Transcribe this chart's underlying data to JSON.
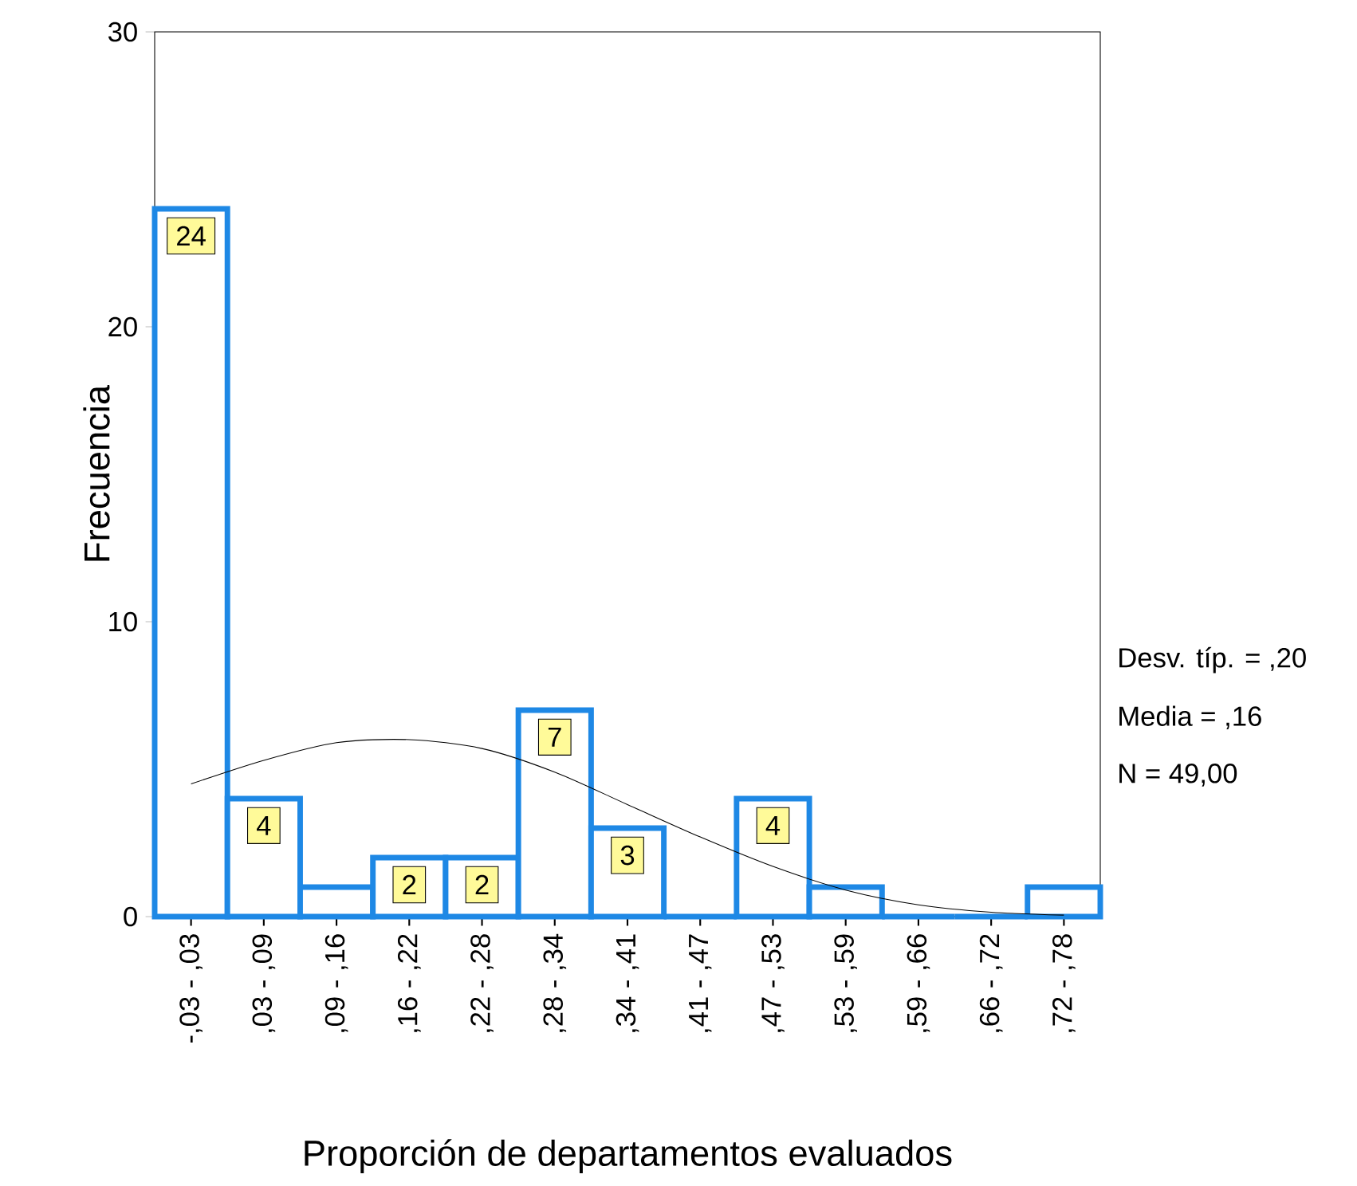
{
  "chart_data": {
    "type": "bar",
    "categories": [
      "-,03 - ,03",
      ",03 - ,09",
      ",09 - ,16",
      ",16 - ,22",
      ",22 - ,28",
      ",28 - ,34",
      ",34 - ,41",
      ",41 - ,47",
      ",47 - ,53",
      ",53 - ,59",
      ",59 - ,66",
      ",66 - ,72",
      ",72 - ,78"
    ],
    "series": [
      {
        "color": "#1e88e5",
        "values": [
          24,
          4,
          1,
          2,
          2,
          7,
          3,
          0,
          4,
          1,
          0,
          0,
          1
        ],
        "value_labels": [
          "24",
          "4",
          null,
          "2",
          "2",
          "7",
          "3",
          null,
          "4",
          null,
          null,
          null,
          null
        ]
      },
      {
        "type": "line",
        "color": "#000000",
        "values": [
          4.5,
          5.3,
          5.9,
          6.0,
          5.7,
          4.9,
          3.8,
          2.7,
          1.7,
          0.9,
          0.4,
          0.15,
          0.05
        ]
      }
    ],
    "ylim": [
      0,
      30
    ],
    "yticks": [
      0,
      10,
      20,
      30
    ],
    "xlabel": "Proporción de departamentos evaluados",
    "ylabel": "Frecuencia",
    "annotations": [
      "Desv. típ. = ,20",
      "Media = ,16",
      "N = 49,00"
    ]
  }
}
